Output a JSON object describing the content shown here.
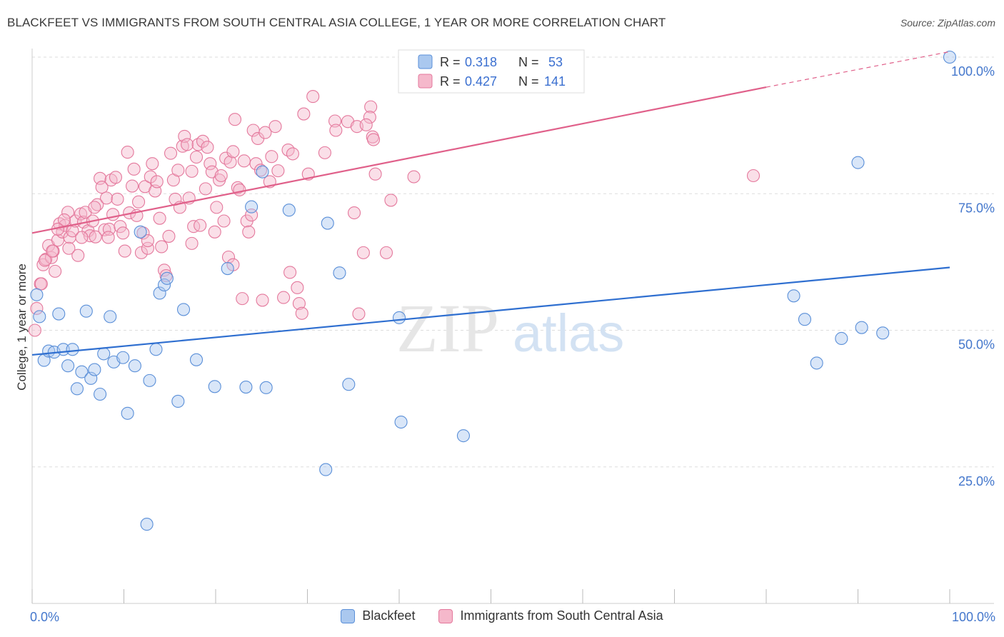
{
  "title": "BLACKFEET VS IMMIGRANTS FROM SOUTH CENTRAL ASIA COLLEGE, 1 YEAR OR MORE CORRELATION CHART",
  "source": "Source: ZipAtlas.com",
  "watermark": {
    "zip": "ZIP",
    "atlas": "atlas"
  },
  "colors": {
    "blue_fill": "#aac8ef",
    "blue_stroke": "#5a8fd8",
    "blue_line": "#2f6fd0",
    "pink_fill": "#f5b8cb",
    "pink_stroke": "#e4789c",
    "pink_line": "#e0608a",
    "axis_text": "#4477cc",
    "grid": "#dddddd"
  },
  "legend_top": [
    {
      "r_label": "R =",
      "r_value": "0.318",
      "n_label": "N =",
      "n_value": "53"
    },
    {
      "r_label": "R =",
      "r_value": "0.427",
      "n_label": "N =",
      "n_value": "141"
    }
  ],
  "chart_data": {
    "type": "scatter",
    "title": "BLACKFEET VS IMMIGRANTS FROM SOUTH CENTRAL ASIA COLLEGE, 1 YEAR OR MORE CORRELATION CHART",
    "xlabel": "",
    "ylabel": "College, 1 year or more",
    "xlim": [
      0,
      100
    ],
    "ylim": [
      0,
      103
    ],
    "x_tick_labels": [
      "0.0%",
      "100.0%"
    ],
    "y_ticks": [
      25,
      50,
      75,
      100
    ],
    "y_tick_labels": [
      "25.0%",
      "50.0%",
      "75.0%",
      "100.0%"
    ],
    "grid": true,
    "legend_position": "bottom",
    "series": [
      {
        "name": "Blackfeet",
        "color": "blue",
        "R": 0.318,
        "N": 53,
        "trend": {
          "x0": 0,
          "y0": 45.5,
          "x1": 100,
          "y1": 61.5
        },
        "points": [
          [
            0.5,
            56.5
          ],
          [
            0.8,
            52.5
          ],
          [
            1.3,
            44.5
          ],
          [
            1.8,
            46.2
          ],
          [
            2.4,
            46
          ],
          [
            2.9,
            53
          ],
          [
            3.4,
            46.5
          ],
          [
            3.9,
            43.5
          ],
          [
            4.4,
            46.5
          ],
          [
            4.9,
            39.3
          ],
          [
            5.4,
            42.4
          ],
          [
            5.9,
            53.5
          ],
          [
            6.4,
            41.2
          ],
          [
            6.8,
            42.8
          ],
          [
            7.4,
            38.3
          ],
          [
            7.8,
            45.7
          ],
          [
            8.5,
            52.5
          ],
          [
            8.9,
            44.2
          ],
          [
            9.9,
            45
          ],
          [
            10.4,
            34.8
          ],
          [
            11.2,
            43.5
          ],
          [
            11.8,
            68
          ],
          [
            12.5,
            14.5
          ],
          [
            12.8,
            40.8
          ],
          [
            13.5,
            46.5
          ],
          [
            13.9,
            56.8
          ],
          [
            14.4,
            58.3
          ],
          [
            14.7,
            59.5
          ],
          [
            15.9,
            37
          ],
          [
            16.5,
            53.8
          ],
          [
            17.9,
            44.6
          ],
          [
            19.9,
            39.7
          ],
          [
            21.3,
            61.3
          ],
          [
            23.3,
            39.6
          ],
          [
            23.9,
            72.6
          ],
          [
            25.1,
            79
          ],
          [
            25.5,
            39.5
          ],
          [
            28,
            72
          ],
          [
            32,
            24.5
          ],
          [
            32.2,
            69.6
          ],
          [
            33.5,
            60.5
          ],
          [
            34.5,
            40.1
          ],
          [
            40,
            52.3
          ],
          [
            40.2,
            33.2
          ],
          [
            47,
            30.7
          ],
          [
            83,
            56.3
          ],
          [
            84.2,
            52
          ],
          [
            85.5,
            44
          ],
          [
            88.2,
            48.5
          ],
          [
            90,
            80.7
          ],
          [
            90.4,
            50.5
          ],
          [
            92.7,
            49.5
          ],
          [
            100,
            100
          ]
        ]
      },
      {
        "name": "Immigrants from South Central Asia",
        "color": "pink",
        "R": 0.427,
        "N": 141,
        "trend": {
          "x0": 0,
          "y0": 67.8,
          "x1": 80,
          "y1": 94.5,
          "x_dash_end": 100,
          "y_dash_end": 101
        },
        "points": [
          [
            0.3,
            50
          ],
          [
            0.5,
            54
          ],
          [
            0.9,
            58.5
          ],
          [
            1.2,
            62
          ],
          [
            1.5,
            63
          ],
          [
            1.8,
            65.5
          ],
          [
            2.1,
            63.3
          ],
          [
            2.3,
            64.5
          ],
          [
            2.5,
            60.8
          ],
          [
            2.8,
            66.5
          ],
          [
            3,
            69.5
          ],
          [
            3.3,
            68
          ],
          [
            3.6,
            69.2
          ],
          [
            3.9,
            71.6
          ],
          [
            4.1,
            67
          ],
          [
            4.4,
            68.2
          ],
          [
            4.7,
            70
          ],
          [
            5,
            63.7
          ],
          [
            5.3,
            71.3
          ],
          [
            5.6,
            69.8
          ],
          [
            5.8,
            71.6
          ],
          [
            6.1,
            68.2
          ],
          [
            6.3,
            67.3
          ],
          [
            6.6,
            70
          ],
          [
            6.9,
            67.1
          ],
          [
            7.1,
            73
          ],
          [
            7.4,
            77.8
          ],
          [
            7.6,
            76.2
          ],
          [
            7.9,
            68.4
          ],
          [
            8.1,
            74.2
          ],
          [
            8.4,
            68.5
          ],
          [
            8.6,
            77.5
          ],
          [
            8.8,
            71.2
          ],
          [
            9.1,
            78
          ],
          [
            9.3,
            74
          ],
          [
            9.6,
            69
          ],
          [
            9.9,
            67.8
          ],
          [
            10.1,
            64.5
          ],
          [
            10.4,
            82.6
          ],
          [
            10.6,
            71.5
          ],
          [
            10.9,
            76.4
          ],
          [
            11.1,
            79.5
          ],
          [
            11.4,
            71
          ],
          [
            11.6,
            73.5
          ],
          [
            11.9,
            64.2
          ],
          [
            12.1,
            67.8
          ],
          [
            12.3,
            76.3
          ],
          [
            12.6,
            65
          ],
          [
            12.9,
            78.1
          ],
          [
            13.1,
            80.5
          ],
          [
            13.4,
            75.5
          ],
          [
            13.6,
            77.2
          ],
          [
            13.9,
            70.5
          ],
          [
            14.1,
            65.3
          ],
          [
            14.4,
            61
          ],
          [
            14.6,
            60
          ],
          [
            14.9,
            67.2
          ],
          [
            15.1,
            82.4
          ],
          [
            15.4,
            77.5
          ],
          [
            15.6,
            74
          ],
          [
            15.9,
            79.3
          ],
          [
            16.1,
            72.5
          ],
          [
            16.4,
            83.7
          ],
          [
            16.6,
            85.5
          ],
          [
            16.9,
            84
          ],
          [
            17.1,
            74.2
          ],
          [
            17.4,
            65.9
          ],
          [
            17.6,
            69
          ],
          [
            17.9,
            81.7
          ],
          [
            18.1,
            84
          ],
          [
            18.3,
            69.2
          ],
          [
            18.6,
            84.6
          ],
          [
            18.9,
            75.9
          ],
          [
            19.1,
            83.5
          ],
          [
            19.4,
            80.5
          ],
          [
            19.6,
            79
          ],
          [
            19.9,
            68
          ],
          [
            20.1,
            72.5
          ],
          [
            20.4,
            77.5
          ],
          [
            20.6,
            78.3
          ],
          [
            20.9,
            70
          ],
          [
            21.1,
            81.5
          ],
          [
            21.4,
            63.4
          ],
          [
            21.6,
            80.8
          ],
          [
            21.9,
            82.7
          ],
          [
            22.1,
            88.6
          ],
          [
            22.4,
            76.1
          ],
          [
            22.6,
            75.7
          ],
          [
            22.9,
            55.8
          ],
          [
            23.1,
            81
          ],
          [
            23.4,
            70
          ],
          [
            23.6,
            68
          ],
          [
            23.9,
            71.1
          ],
          [
            24.1,
            86.6
          ],
          [
            24.4,
            80.5
          ],
          [
            24.6,
            85.1
          ],
          [
            24.9,
            79.3
          ],
          [
            25.1,
            55.5
          ],
          [
            25.4,
            86.2
          ],
          [
            25.9,
            77.2
          ],
          [
            26.1,
            81.8
          ],
          [
            26.5,
            87.3
          ],
          [
            27.4,
            56
          ],
          [
            27.9,
            83
          ],
          [
            28.1,
            60.6
          ],
          [
            28.4,
            82.3
          ],
          [
            28.9,
            57.8
          ],
          [
            29.1,
            54.9
          ],
          [
            29.4,
            53.1
          ],
          [
            29.6,
            89.6
          ],
          [
            30.1,
            78.6
          ],
          [
            30.6,
            92.8
          ],
          [
            31.9,
            82.5
          ],
          [
            33,
            88.3
          ],
          [
            33.1,
            86.6
          ],
          [
            34.4,
            88.2
          ],
          [
            35.1,
            71.5
          ],
          [
            35.4,
            87.3
          ],
          [
            35.6,
            53
          ],
          [
            36.1,
            64.2
          ],
          [
            36.9,
            90.9
          ],
          [
            37.1,
            85.4
          ],
          [
            37.4,
            78.6
          ],
          [
            38.6,
            64.2
          ],
          [
            39.1,
            73.8
          ],
          [
            41.6,
            78.1
          ],
          [
            78.6,
            78.3
          ],
          [
            36.8,
            89
          ],
          [
            36.4,
            87.6
          ],
          [
            37.2,
            84.9
          ],
          [
            21.9,
            62
          ],
          [
            26.8,
            79.2
          ],
          [
            17.4,
            79.1
          ],
          [
            12.6,
            66.4
          ],
          [
            8.3,
            67
          ],
          [
            3.5,
            70.2
          ],
          [
            2.8,
            68.5
          ],
          [
            5.4,
            67
          ],
          [
            1,
            58.5
          ],
          [
            1.4,
            62.8
          ],
          [
            2.2,
            64.5
          ],
          [
            4,
            65
          ],
          [
            6.8,
            72.5
          ]
        ]
      }
    ]
  }
}
